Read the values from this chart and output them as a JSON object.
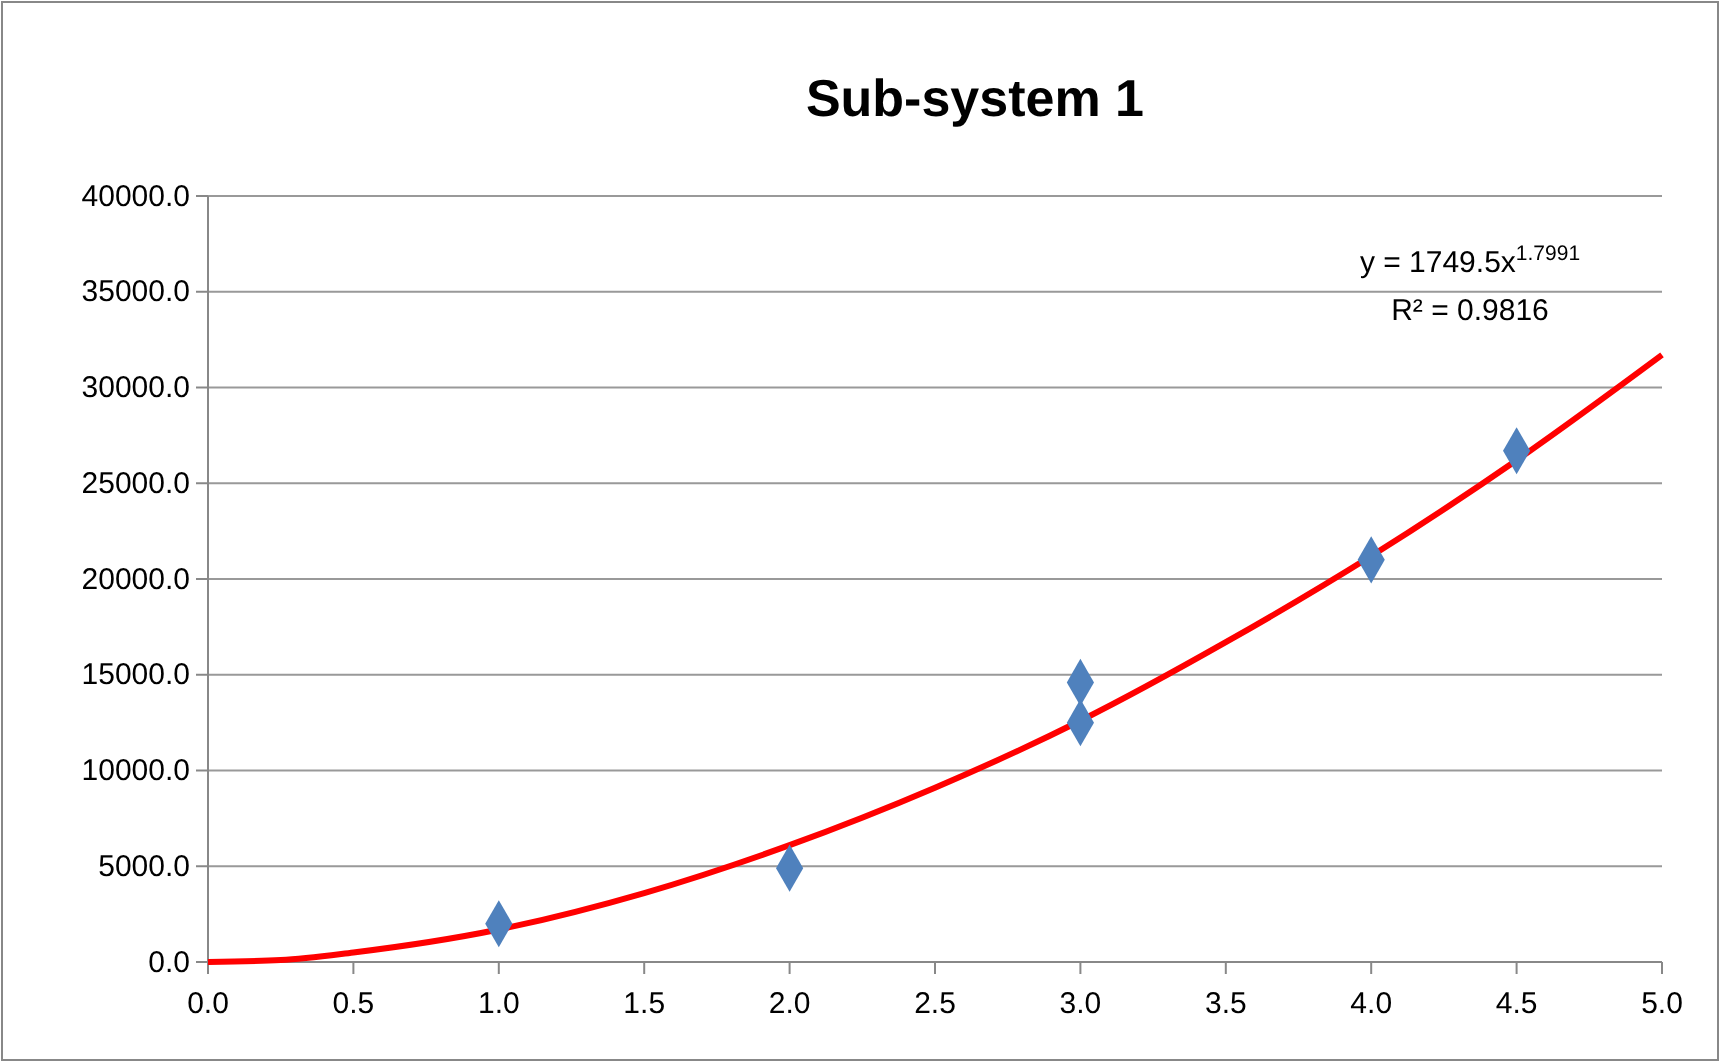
{
  "chart_data": {
    "type": "scatter",
    "title": "Sub-system 1",
    "grid": "y",
    "xlim": [
      0,
      5
    ],
    "xticks": [
      {
        "value": 0,
        "label": "0.0"
      },
      {
        "value": 0.5,
        "label": "0.5"
      },
      {
        "value": 1,
        "label": "1.0"
      },
      {
        "value": 1.5,
        "label": "1.5"
      },
      {
        "value": 2,
        "label": "2.0"
      },
      {
        "value": 2.5,
        "label": "2.5"
      },
      {
        "value": 3,
        "label": "3.0"
      },
      {
        "value": 3.5,
        "label": "3.5"
      },
      {
        "value": 4,
        "label": "4.0"
      },
      {
        "value": 4.5,
        "label": "4.5"
      },
      {
        "value": 5,
        "label": "5.0"
      }
    ],
    "ylim": [
      0,
      40000
    ],
    "yticks": [
      {
        "value": 0,
        "label": "0.0"
      },
      {
        "value": 5000,
        "label": "5000.0"
      },
      {
        "value": 10000,
        "label": "10000.0"
      },
      {
        "value": 15000,
        "label": "15000.0"
      },
      {
        "value": 20000,
        "label": "20000.0"
      },
      {
        "value": 25000,
        "label": "25000.0"
      },
      {
        "value": 30000,
        "label": "30000.0"
      },
      {
        "value": 35000,
        "label": "35000.0"
      },
      {
        "value": 40000,
        "label": "40000.0"
      }
    ],
    "series": [
      {
        "marker": "diamond",
        "color": "#4f81bd",
        "x": [
          1,
          2,
          3,
          3,
          4,
          4.5
        ],
        "values": [
          2000,
          4900,
          14600,
          12500,
          21000,
          26700
        ]
      },
      {
        "type": "line",
        "marker": "none",
        "color": "#ff0000",
        "x": [
          0,
          0.25,
          0.5,
          1,
          1.5,
          2,
          2.5,
          3,
          3.5,
          4,
          4.5,
          5
        ],
        "values": [
          0,
          100,
          500,
          1700,
          3600,
          6100,
          9100,
          12600,
          16700,
          21200,
          26200,
          31700
        ]
      }
    ],
    "annotations": [
      "y = 1749.5x$^{1.7991}$",
      "R² = 0.9816"
    ]
  }
}
